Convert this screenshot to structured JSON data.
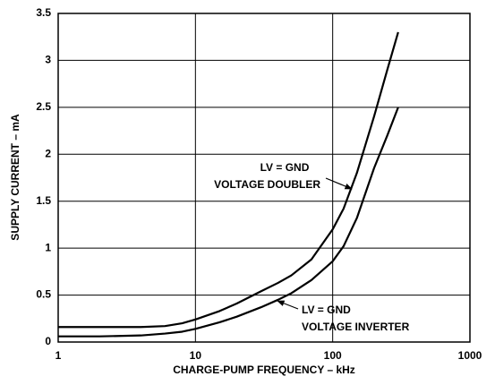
{
  "chart_data": {
    "type": "line",
    "xlabel": "CHARGE-PUMP FREQUENCY – kHz",
    "ylabel": "SUPPLY CURRENT – mA",
    "xlog": true,
    "grid": true,
    "xlim": [
      1,
      1000
    ],
    "xticks": [
      1,
      10,
      100,
      1000
    ],
    "ylim": [
      0,
      3.5
    ],
    "yticks": [
      0,
      0.5,
      1,
      1.5,
      2,
      2.5,
      3,
      3.5
    ],
    "annotations": [
      "LV = GND",
      "VOLTAGE DOUBLER",
      "LV = GND",
      "VOLTAGE INVERTER"
    ],
    "series": [
      {
        "color": "#000000",
        "x": [
          1,
          2,
          4,
          6,
          8,
          10,
          15,
          20,
          30,
          40,
          50,
          70,
          100,
          120,
          150,
          200,
          250,
          300
        ],
        "values": [
          0.16,
          0.16,
          0.16,
          0.17,
          0.2,
          0.24,
          0.33,
          0.41,
          0.54,
          0.63,
          0.71,
          0.88,
          1.2,
          1.42,
          1.8,
          2.4,
          2.9,
          3.3
        ]
      },
      {
        "color": "#000000",
        "x": [
          1,
          2,
          4,
          6,
          8,
          10,
          15,
          20,
          30,
          40,
          50,
          70,
          100,
          120,
          150,
          200,
          250,
          300
        ],
        "values": [
          0.06,
          0.06,
          0.07,
          0.09,
          0.11,
          0.14,
          0.21,
          0.27,
          0.37,
          0.45,
          0.52,
          0.66,
          0.86,
          1.02,
          1.32,
          1.85,
          2.2,
          2.5
        ]
      }
    ]
  }
}
